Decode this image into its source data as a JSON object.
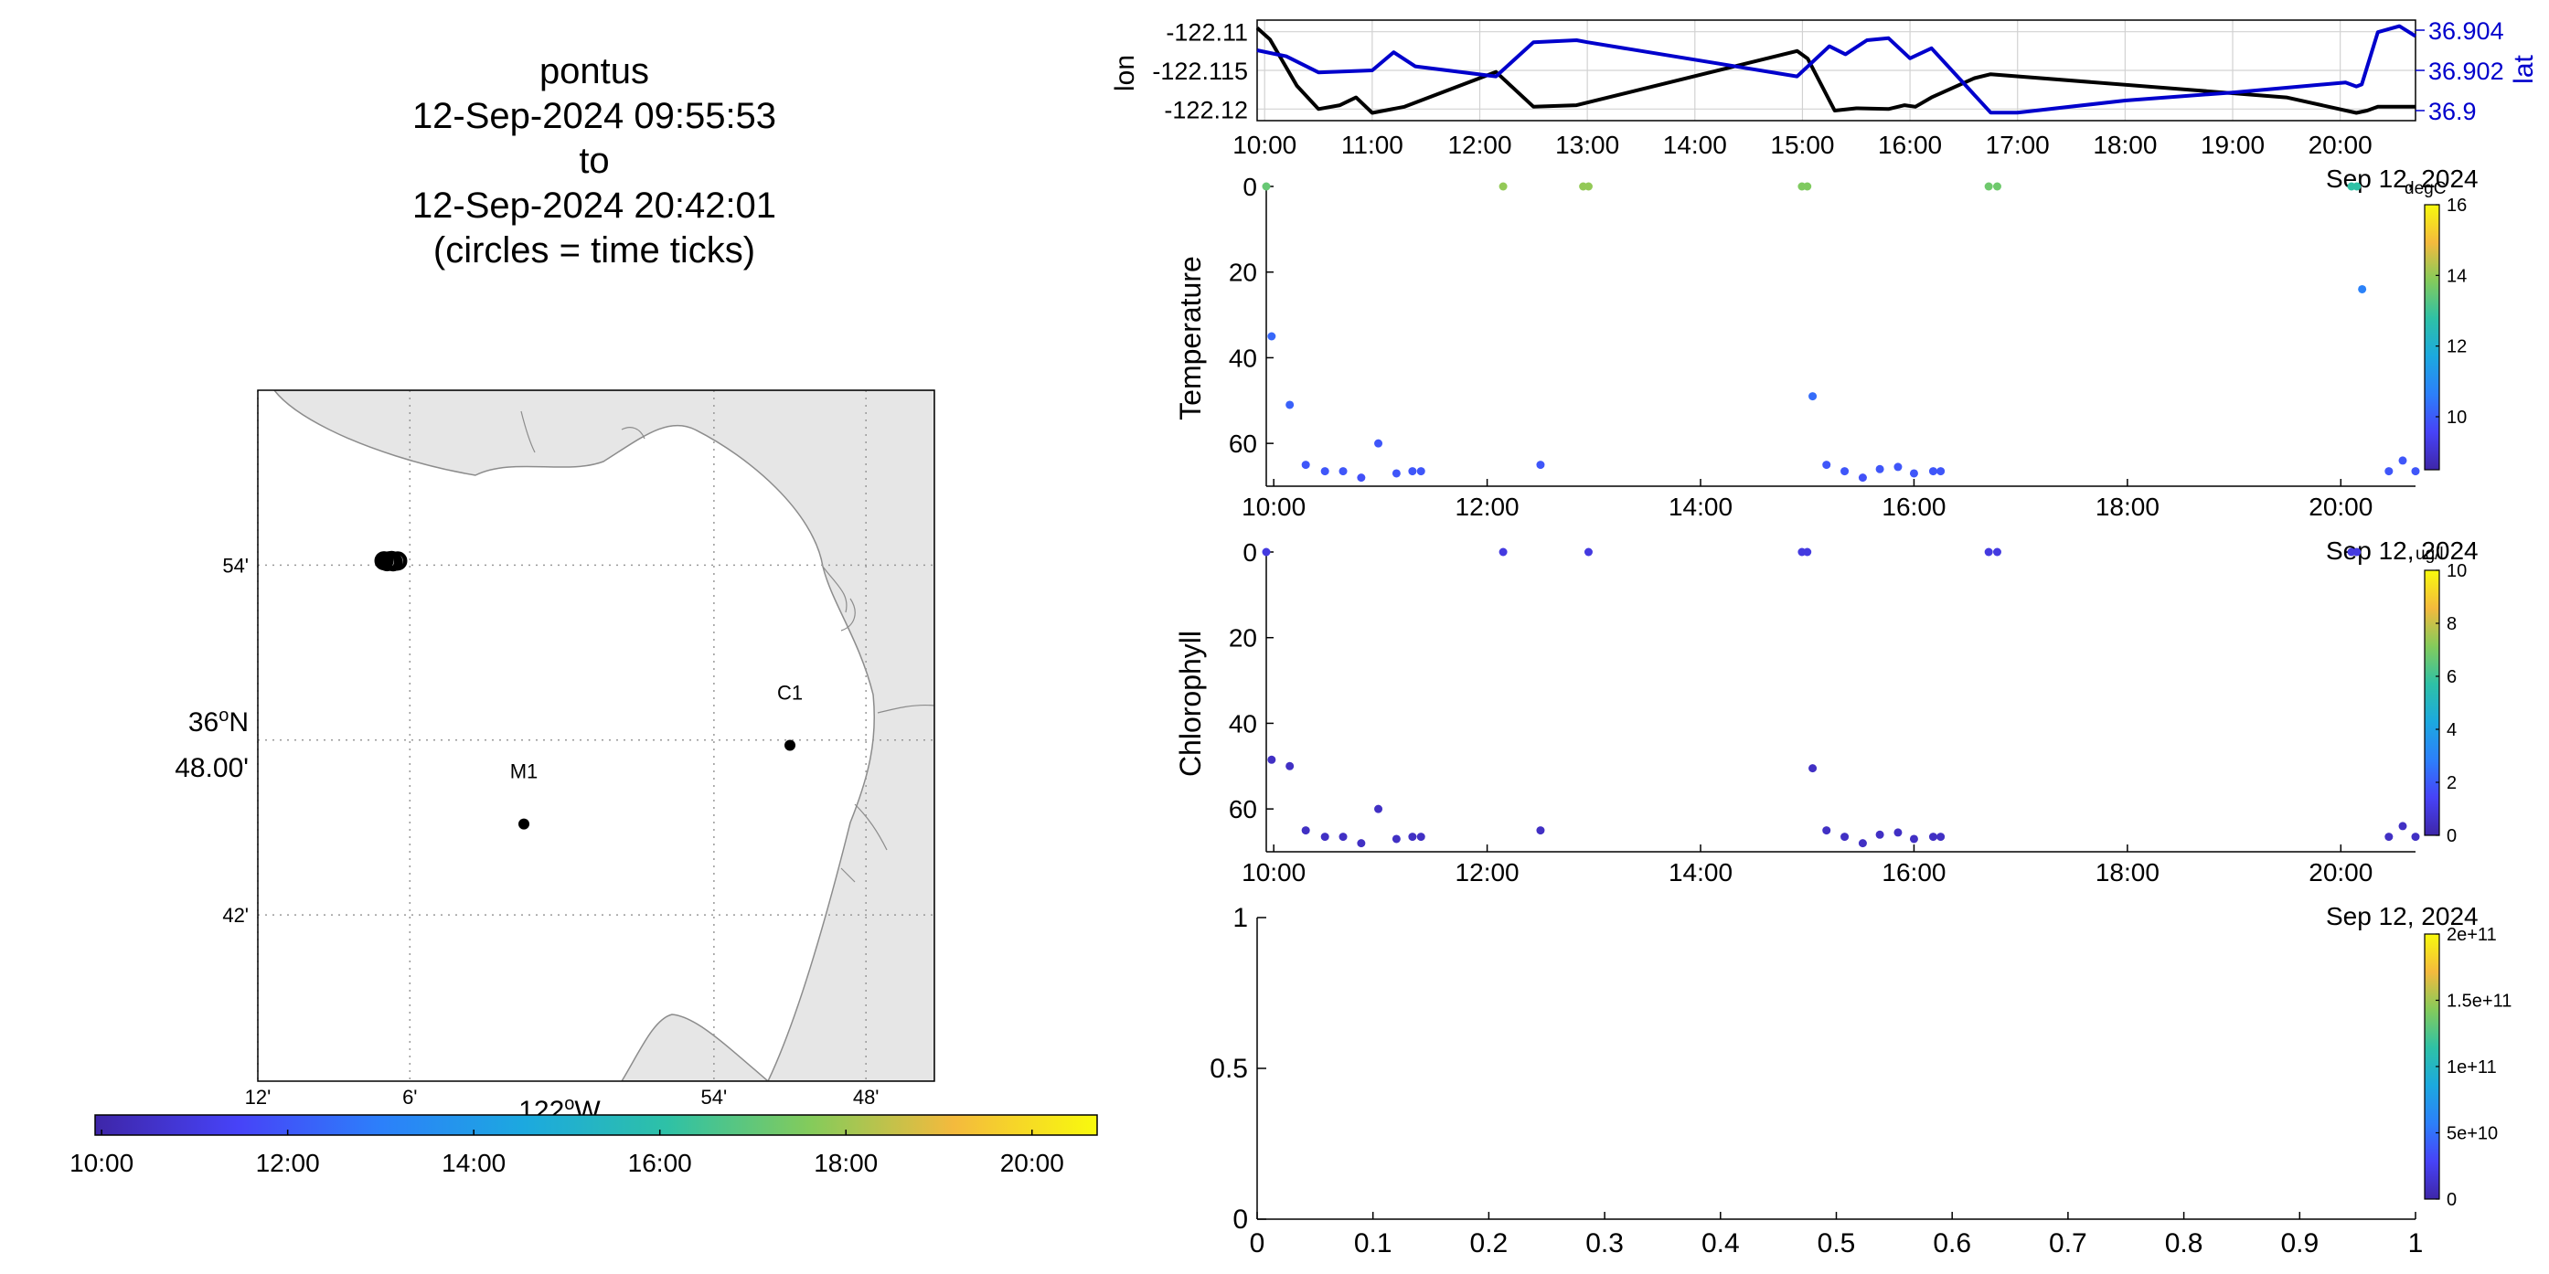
{
  "title_lines": [
    "pontus",
    "12-Sep-2024 09:55:53",
    "to",
    "12-Sep-2024 20:42:01",
    "(circles = time ticks)"
  ],
  "colors": {
    "colormap": [
      "#3e26a8",
      "#4743f8",
      "#2c80fa",
      "#1ca9df",
      "#2ec1a6",
      "#84cb5b",
      "#f4ba3d",
      "#f8fa0d"
    ],
    "land": "#e6e6e6",
    "coast": "#8c8c8c",
    "lon_line": "#000000",
    "lat_line": "#0000cc",
    "grid": "#d2d2d2"
  },
  "chart_data": [
    {
      "type": "scatter",
      "panel": "map",
      "lon_ticks": [
        {
          "value": -122.2,
          "label": "12'"
        },
        {
          "value": -122.1,
          "label": "6'"
        },
        {
          "value": -121.9,
          "label": "54'"
        },
        {
          "value": -121.8,
          "label": "48'"
        }
      ],
      "lat_ticks": [
        {
          "value": 36.9,
          "label": "54'"
        },
        {
          "value": 36.8,
          "label": "48.00'",
          "label_deg": "36",
          "label_unit": "N"
        },
        {
          "value": 36.7,
          "label": "42'"
        }
      ],
      "xlabel_deg": "122",
      "xlabel_unit": "W",
      "xlim": [
        -122.2,
        -121.755
      ],
      "ylim": [
        36.605,
        37.0
      ],
      "moorings": [
        {
          "name": "M1",
          "lon": -122.025,
          "lat": 36.752
        },
        {
          "name": "C1",
          "lon": -121.85,
          "lat": 36.797
        }
      ],
      "track": [
        {
          "lon": -122.117,
          "lat": 36.9025
        },
        {
          "lon": -122.115,
          "lat": 36.902
        },
        {
          "lon": -122.113,
          "lat": 36.9022
        },
        {
          "lon": -122.111,
          "lat": 36.9019
        },
        {
          "lon": -122.109,
          "lat": 36.9023
        },
        {
          "lon": -122.108,
          "lat": 36.9024
        },
        {
          "lon": -122.112,
          "lat": 36.9027
        },
        {
          "lon": -122.114,
          "lat": 36.9024
        }
      ],
      "colorbar": {
        "ticks": [
          "10:00",
          "12:00",
          "14:00",
          "16:00",
          "18:00",
          "20:00"
        ],
        "range_hours": [
          9.93,
          20.7
        ]
      }
    },
    {
      "type": "line",
      "panel": "position",
      "ylabel": "lon",
      "y2label": "lat",
      "x_ticks": [
        "10:00",
        "11:00",
        "12:00",
        "13:00",
        "14:00",
        "15:00",
        "16:00",
        "17:00",
        "18:00",
        "19:00",
        "20:00"
      ],
      "date_label": "Sep 12, 2024",
      "xlim": [
        9.93,
        20.7
      ],
      "ylim": [
        -122.1215,
        -122.1085
      ],
      "y_ticks": [
        "-122.11",
        "-122.115",
        "-122.12"
      ],
      "y2lim": [
        36.8995,
        36.9045
      ],
      "y2_ticks": [
        "36.904",
        "36.902",
        "36.9"
      ],
      "series": [
        {
          "name": "lon",
          "t": [
            9.93,
            10.05,
            10.3,
            10.5,
            10.7,
            10.85,
            11.0,
            11.3,
            12.15,
            12.5,
            12.9,
            14.95,
            15.05,
            15.3,
            15.5,
            15.8,
            15.95,
            16.05,
            16.2,
            16.6,
            16.75,
            19.5,
            20.15,
            20.25,
            20.35,
            20.7
          ],
          "values": [
            -122.1095,
            -122.111,
            -122.117,
            -122.12,
            -122.1195,
            -122.1185,
            -122.1205,
            -122.1197,
            -122.1152,
            -122.1197,
            -122.1195,
            -122.1125,
            -122.1135,
            -122.1202,
            -122.1199,
            -122.12,
            -122.1195,
            -122.1197,
            -122.1185,
            -122.116,
            -122.1155,
            -122.1185,
            -122.1205,
            -122.1202,
            -122.1197,
            -122.1197
          ]
        },
        {
          "name": "lat",
          "t": [
            9.93,
            10.2,
            10.5,
            11.0,
            11.2,
            11.4,
            12.15,
            12.5,
            12.9,
            13.0,
            14.95,
            15.25,
            15.4,
            15.6,
            15.8,
            16.0,
            16.2,
            16.75,
            17.0,
            18.0,
            19.0,
            20.05,
            20.15,
            20.2,
            20.35,
            20.55,
            20.7
          ],
          "values": [
            36.903,
            36.9027,
            36.9019,
            36.902,
            36.9029,
            36.9022,
            36.9017,
            36.9034,
            36.9035,
            36.9034,
            36.9017,
            36.9032,
            36.9028,
            36.9035,
            36.9036,
            36.9026,
            36.9031,
            36.8999,
            36.8999,
            36.9005,
            36.9009,
            36.9014,
            36.9012,
            36.9013,
            36.9039,
            36.9042,
            36.9037
          ]
        }
      ]
    },
    {
      "type": "scatter",
      "panel": "temperature",
      "ylabel": "Temperature",
      "units": "degC",
      "x_ticks": [
        "10:00",
        "12:00",
        "14:00",
        "16:00",
        "18:00",
        "20:00"
      ],
      "date_label": "Sep 12, 2024",
      "xlim": [
        9.93,
        20.7
      ],
      "ylim": [
        0,
        70
      ],
      "y_ticks": [
        "0",
        "20",
        "40",
        "60"
      ],
      "clim": [
        8.5,
        16
      ],
      "colorbar_ticks": [
        "10",
        "12",
        "14",
        "16"
      ],
      "points": [
        {
          "t": 9.93,
          "depth": 0,
          "value": 13.5
        },
        {
          "t": 9.98,
          "depth": 35,
          "value": 10.2
        },
        {
          "t": 10.15,
          "depth": 51,
          "value": 10.1
        },
        {
          "t": 10.3,
          "depth": 65,
          "value": 9.9
        },
        {
          "t": 10.48,
          "depth": 66.5,
          "value": 9.9
        },
        {
          "t": 10.65,
          "depth": 66.5,
          "value": 9.9
        },
        {
          "t": 10.82,
          "depth": 68,
          "value": 9.8
        },
        {
          "t": 10.98,
          "depth": 60,
          "value": 9.9
        },
        {
          "t": 11.15,
          "depth": 67,
          "value": 9.9
        },
        {
          "t": 11.3,
          "depth": 66.5,
          "value": 9.9
        },
        {
          "t": 11.38,
          "depth": 66.5,
          "value": 9.9
        },
        {
          "t": 12.15,
          "depth": 0,
          "value": 14.0
        },
        {
          "t": 12.5,
          "depth": 65,
          "value": 9.9
        },
        {
          "t": 12.9,
          "depth": 0,
          "value": 14.0
        },
        {
          "t": 12.95,
          "depth": 0,
          "value": 14.0
        },
        {
          "t": 14.95,
          "depth": 0,
          "value": 13.8
        },
        {
          "t": 15.0,
          "depth": 0,
          "value": 13.8
        },
        {
          "t": 15.05,
          "depth": 49,
          "value": 10.3
        },
        {
          "t": 15.18,
          "depth": 65,
          "value": 9.9
        },
        {
          "t": 15.35,
          "depth": 66.5,
          "value": 9.9
        },
        {
          "t": 15.52,
          "depth": 68,
          "value": 9.8
        },
        {
          "t": 15.68,
          "depth": 66,
          "value": 9.9
        },
        {
          "t": 15.85,
          "depth": 65.5,
          "value": 9.9
        },
        {
          "t": 16.0,
          "depth": 67,
          "value": 9.9
        },
        {
          "t": 16.18,
          "depth": 66.5,
          "value": 9.9
        },
        {
          "t": 16.25,
          "depth": 66.5,
          "value": 9.9
        },
        {
          "t": 16.7,
          "depth": 0,
          "value": 13.6
        },
        {
          "t": 16.78,
          "depth": 0,
          "value": 13.6
        },
        {
          "t": 20.1,
          "depth": 0,
          "value": 12.8
        },
        {
          "t": 20.15,
          "depth": 0,
          "value": 12.8
        },
        {
          "t": 20.2,
          "depth": 24,
          "value": 10.7
        },
        {
          "t": 20.45,
          "depth": 66.5,
          "value": 9.9
        },
        {
          "t": 20.58,
          "depth": 64,
          "value": 9.9
        },
        {
          "t": 20.7,
          "depth": 66.5,
          "value": 9.9
        }
      ]
    },
    {
      "type": "scatter",
      "panel": "chlorophyll",
      "ylabel": "Chlorophyll",
      "units": "ug/l",
      "x_ticks": [
        "10:00",
        "12:00",
        "14:00",
        "16:00",
        "18:00",
        "20:00"
      ],
      "date_label": "Sep 12, 2024",
      "xlim": [
        9.93,
        20.7
      ],
      "ylim": [
        0,
        70
      ],
      "y_ticks": [
        "0",
        "20",
        "40",
        "60"
      ],
      "clim": [
        0,
        10
      ],
      "colorbar_ticks": [
        "0",
        "2",
        "4",
        "6",
        "8",
        "10"
      ],
      "points": [
        {
          "t": 9.93,
          "depth": 0,
          "value": 1.0
        },
        {
          "t": 9.98,
          "depth": 48.5,
          "value": 0.5
        },
        {
          "t": 10.15,
          "depth": 50,
          "value": 0.5
        },
        {
          "t": 10.3,
          "depth": 65,
          "value": 0.5
        },
        {
          "t": 10.48,
          "depth": 66.5,
          "value": 0.5
        },
        {
          "t": 10.65,
          "depth": 66.5,
          "value": 0.5
        },
        {
          "t": 10.82,
          "depth": 68,
          "value": 0.5
        },
        {
          "t": 10.98,
          "depth": 60,
          "value": 0.5
        },
        {
          "t": 11.15,
          "depth": 67,
          "value": 0.5
        },
        {
          "t": 11.3,
          "depth": 66.5,
          "value": 0.5
        },
        {
          "t": 11.38,
          "depth": 66.5,
          "value": 0.5
        },
        {
          "t": 12.15,
          "depth": 0,
          "value": 1.0
        },
        {
          "t": 12.5,
          "depth": 65,
          "value": 0.5
        },
        {
          "t": 12.95,
          "depth": 0,
          "value": 1.0
        },
        {
          "t": 14.95,
          "depth": 0,
          "value": 1.0
        },
        {
          "t": 15.0,
          "depth": 0,
          "value": 1.0
        },
        {
          "t": 15.05,
          "depth": 50.5,
          "value": 0.5
        },
        {
          "t": 15.18,
          "depth": 65,
          "value": 0.5
        },
        {
          "t": 15.35,
          "depth": 66.5,
          "value": 0.5
        },
        {
          "t": 15.52,
          "depth": 68,
          "value": 0.5
        },
        {
          "t": 15.68,
          "depth": 66,
          "value": 0.5
        },
        {
          "t": 15.85,
          "depth": 65.5,
          "value": 0.5
        },
        {
          "t": 16.0,
          "depth": 67,
          "value": 0.5
        },
        {
          "t": 16.18,
          "depth": 66.5,
          "value": 0.5
        },
        {
          "t": 16.25,
          "depth": 66.5,
          "value": 0.5
        },
        {
          "t": 16.7,
          "depth": 0,
          "value": 1.0
        },
        {
          "t": 16.78,
          "depth": 0,
          "value": 1.0
        },
        {
          "t": 20.1,
          "depth": 0,
          "value": 1.0
        },
        {
          "t": 20.15,
          "depth": 0,
          "value": 1.0
        },
        {
          "t": 20.45,
          "depth": 66.5,
          "value": 0.5
        },
        {
          "t": 20.58,
          "depth": 64,
          "value": 0.5
        },
        {
          "t": 20.7,
          "depth": 66.5,
          "value": 0.5
        }
      ]
    },
    {
      "type": "scatter",
      "panel": "empty",
      "xlim": [
        0,
        1
      ],
      "ylim": [
        0,
        1
      ],
      "x_ticks": [
        "0",
        "0.1",
        "0.2",
        "0.3",
        "0.4",
        "0.5",
        "0.6",
        "0.7",
        "0.8",
        "0.9",
        "1"
      ],
      "y_ticks": [
        "0",
        "0.5",
        "1"
      ],
      "colorbar_ticks": [
        "0",
        "5e+10",
        "1e+11",
        "1.5e+11",
        "2e+11"
      ],
      "points": []
    }
  ]
}
